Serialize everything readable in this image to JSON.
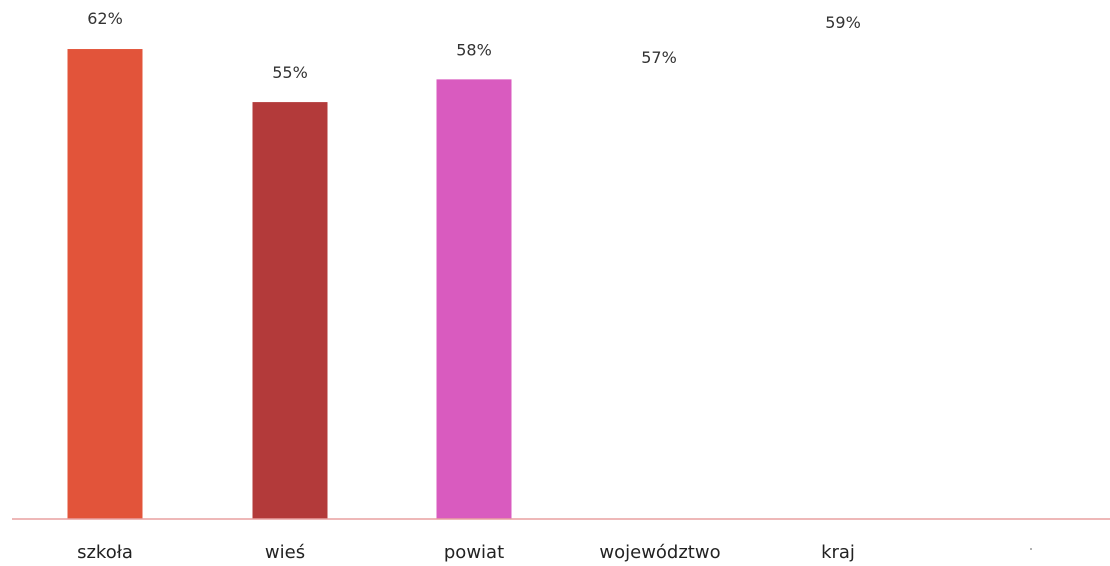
{
  "chart_data": {
    "type": "bar",
    "categories": [
      "szkoła",
      "wieś",
      "powiat",
      "województwo",
      "kraj"
    ],
    "values": [
      62,
      55,
      58,
      57,
      59
    ],
    "value_labels": [
      "62%",
      "55%",
      "58%",
      "57%",
      "59%"
    ],
    "bar_colors": [
      "#e2543a",
      "#b33a3a",
      "#d95bbf",
      null,
      null
    ],
    "axis_color": "#e8a0a0",
    "ylim": [
      0,
      66
    ],
    "grid": false,
    "legend": "none"
  }
}
